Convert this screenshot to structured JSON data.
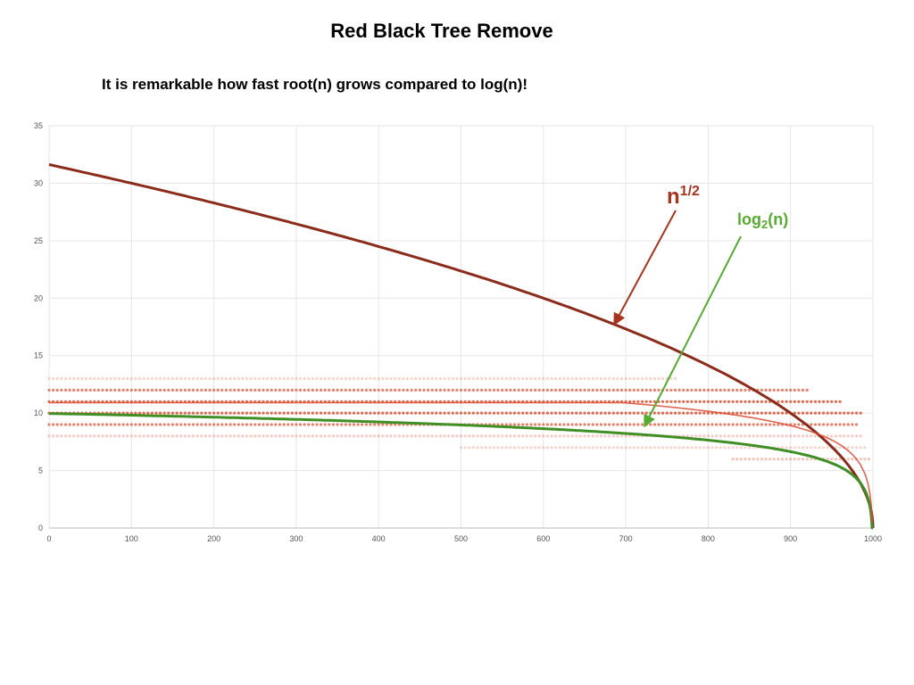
{
  "slide": {
    "title": "Red Black Tree Remove",
    "subtitle": "It is remarkable how fast root(n) grows compared to log(n)!"
  },
  "chart_data": {
    "type": "scatter",
    "title": "",
    "xlabel": "",
    "ylabel": "",
    "xlim": [
      0,
      1000
    ],
    "ylim": [
      0,
      35
    ],
    "xticks": [
      0,
      100,
      200,
      300,
      400,
      500,
      600,
      700,
      800,
      900,
      1000
    ],
    "yticks": [
      0,
      5,
      10,
      15,
      20,
      25,
      30,
      35
    ],
    "grid": true,
    "series": [
      {
        "key": "sqrt",
        "name": "n1/2",
        "type": "line",
        "color": "#8b2b1b",
        "formula": "sqrt(1000 - x)"
      },
      {
        "key": "log",
        "name": "log2(n)",
        "type": "line",
        "color": "#3f8f25",
        "formula": "log2(1000 - x)"
      },
      {
        "key": "observed",
        "type": "scatter",
        "color": "#e0573a",
        "levels": [
          {
            "y": 13,
            "x_range": [
              0,
              760
            ],
            "opacity": 0.25
          },
          {
            "y": 12,
            "x_range": [
              0,
              920
            ],
            "opacity": 0.75
          },
          {
            "y": 11,
            "x_range": [
              0,
              960
            ],
            "opacity": 0.9
          },
          {
            "y": 10,
            "x_range": [
              0,
              985
            ],
            "opacity": 0.9
          },
          {
            "y": 9,
            "x_range": [
              0,
              980
            ],
            "opacity": 0.75
          },
          {
            "y": 8,
            "x_range": [
              0,
              985
            ],
            "opacity": 0.3
          },
          {
            "y": 7,
            "x_range": [
              500,
              990
            ],
            "opacity": 0.25
          },
          {
            "y": 6,
            "x_range": [
              830,
              995
            ],
            "opacity": 0.35
          }
        ]
      }
    ],
    "annotations": [
      {
        "series": "sqrt",
        "base": "n",
        "sup": "1/2",
        "color": "#a8341f"
      },
      {
        "series": "log",
        "base": "log",
        "sub": "2",
        "tail": "(n)",
        "color": "#58ab32"
      }
    ]
  }
}
